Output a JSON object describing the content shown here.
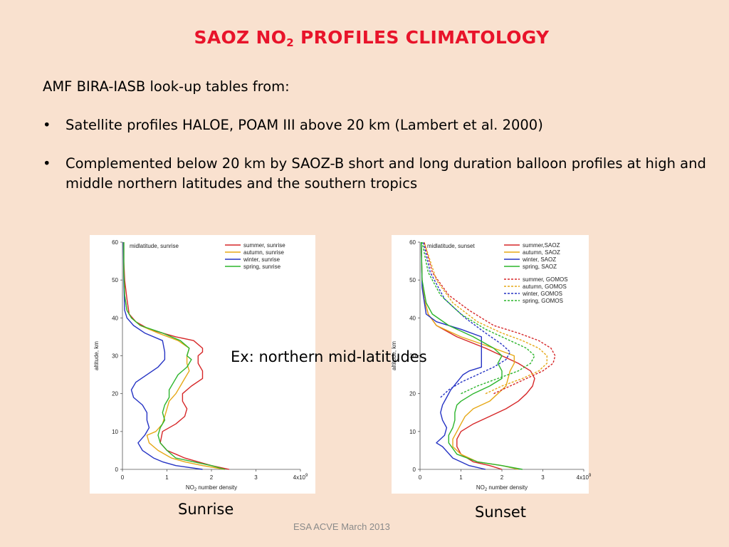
{
  "slide": {
    "title_main": "SAOZ NO",
    "title_sub": "2",
    "title_rest": " PROFILES CLIMATOLOGY",
    "intro": "AMF BIRA-IASB look-up tables from:",
    "bullet_symbol": "•",
    "bullets": [
      "Satellite profiles HALOE, POAM III  above 20 km (Lambert et al. 2000)",
      "Complemented below 20 km by SAOZ-B short and long duration balloon profiles at high and middle northern latitudes and the southern tropics"
    ],
    "example_label": "Ex: northern mid-latitudes",
    "caption_left": "Sunrise",
    "caption_right": "Sunset",
    "footer": "ESA ACVE March 2013",
    "title_color": "#e8132a",
    "background_color": "#f9e1cf"
  },
  "chart_data": [
    {
      "type": "line",
      "title": "midlatitude, sunrise",
      "xlabel_main": "NO",
      "xlabel_sub": "2",
      "xlabel_rest": " number density",
      "ylabel": "altitude, km",
      "xlim": [
        0,
        4
      ],
      "ylim": [
        0,
        60
      ],
      "xticks": [
        "0",
        "1",
        "2",
        "3",
        "4x10"
      ],
      "xtick_exponent": "9",
      "yticks": [
        "0",
        "10",
        "20",
        "30",
        "40",
        "50",
        "60"
      ],
      "legend_position": "top-right",
      "series": [
        {
          "name": "summer, sunrise",
          "color": "#d62728",
          "dashed": false,
          "x": [
            2.4,
            2.0,
            1.7,
            1.4,
            1.2,
            1.0,
            0.85,
            0.9,
            1.2,
            1.4,
            1.45,
            1.35,
            1.35,
            1.55,
            1.8,
            1.8,
            1.7,
            1.7,
            1.8,
            1.8,
            1.6,
            1.2,
            0.6,
            0.3,
            0.15,
            0.1,
            0.05,
            0.03,
            0.03
          ],
          "y": [
            0,
            1,
            2,
            3,
            4,
            5,
            7,
            10,
            12,
            14,
            16,
            18,
            20,
            22,
            24,
            26,
            28,
            30,
            31,
            32,
            34,
            35,
            37,
            39,
            41,
            45,
            50,
            55,
            60
          ]
        },
        {
          "name": "autumn, sunrise",
          "color": "#e6a817",
          "dashed": false,
          "x": [
            2.3,
            1.8,
            1.4,
            1.1,
            0.8,
            0.6,
            0.55,
            0.75,
            0.9,
            0.95,
            1.0,
            1.05,
            1.2,
            1.3,
            1.4,
            1.5,
            1.45,
            1.45,
            1.5,
            1.25,
            0.8,
            0.4,
            0.2,
            0.1,
            0.05,
            0.03,
            0.03
          ],
          "y": [
            0,
            1,
            2,
            3,
            5,
            7,
            9,
            10,
            12,
            14,
            16,
            18,
            20,
            22,
            24,
            26,
            28,
            30,
            32,
            34,
            36,
            38,
            40,
            42,
            46,
            52,
            60
          ]
        },
        {
          "name": "winter, sunrise",
          "color": "#2533c4",
          "dashed": false,
          "x": [
            1.8,
            1.2,
            0.9,
            0.7,
            0.45,
            0.35,
            0.5,
            0.6,
            0.55,
            0.55,
            0.45,
            0.25,
            0.2,
            0.3,
            0.55,
            0.8,
            0.95,
            0.95,
            0.9,
            0.5,
            0.25,
            0.1,
            0.05,
            0.03,
            0.02
          ],
          "y": [
            0,
            1,
            2,
            3,
            5,
            7,
            9,
            11,
            13,
            15,
            17,
            19,
            21,
            23,
            25,
            27,
            29,
            31,
            34,
            36,
            38,
            40,
            42,
            50,
            60
          ]
        },
        {
          "name": "spring, sunrise",
          "color": "#2cb52c",
          "dashed": false,
          "x": [
            2.3,
            2.0,
            1.6,
            1.2,
            1.0,
            0.85,
            0.8,
            0.85,
            0.95,
            0.9,
            0.95,
            1.05,
            1.05,
            1.15,
            1.25,
            1.45,
            1.55,
            1.45,
            1.5,
            1.3,
            0.9,
            0.4,
            0.2,
            0.1,
            0.05,
            0.03,
            0.03
          ],
          "y": [
            0,
            1,
            2,
            3,
            5,
            7,
            9,
            11,
            13,
            15,
            17,
            19,
            21,
            23,
            25,
            27,
            29,
            30,
            32,
            34,
            36,
            38,
            40,
            42,
            46,
            52,
            60
          ]
        }
      ]
    },
    {
      "type": "line",
      "title": "midlatitude, sunset",
      "xlabel_main": "NO",
      "xlabel_sub": "2",
      "xlabel_rest": " number density",
      "ylabel": "altitude, km",
      "xlim": [
        0,
        4
      ],
      "ylim": [
        0,
        60
      ],
      "xticks": [
        "0",
        "1",
        "2",
        "3",
        "4x10"
      ],
      "xtick_exponent": "9",
      "yticks": [
        "0",
        "10",
        "20",
        "30",
        "40",
        "50",
        "60"
      ],
      "legend_position": "top-right",
      "series": [
        {
          "name": "summer,SAOZ",
          "color": "#d62728",
          "dashed": false,
          "x": [
            2.0,
            1.7,
            1.3,
            1.0,
            0.9,
            0.9,
            1.0,
            1.3,
            1.7,
            2.1,
            2.4,
            2.6,
            2.75,
            2.8,
            2.7,
            2.4,
            1.6,
            0.9,
            0.4,
            0.2,
            0.1,
            0.05,
            0.03
          ],
          "y": [
            0,
            1,
            2,
            4,
            6,
            8,
            10,
            12,
            14,
            16,
            18,
            20,
            22,
            24,
            26,
            28,
            32,
            35,
            38,
            41,
            45,
            50,
            60
          ]
        },
        {
          "name": "autumn, SAOZ",
          "color": "#e6a817",
          "dashed": false,
          "x": [
            2.4,
            2.0,
            1.4,
            1.0,
            0.8,
            0.8,
            0.9,
            1.0,
            1.1,
            1.3,
            1.7,
            1.9,
            2.1,
            2.15,
            2.2,
            2.3,
            2.3,
            1.8,
            1.0,
            0.4,
            0.2,
            0.1,
            0.05,
            0.03
          ],
          "y": [
            0,
            1,
            2,
            4,
            6,
            8,
            10,
            12,
            14,
            16,
            18,
            20,
            22,
            24,
            26,
            28,
            30,
            32,
            35,
            38,
            41,
            45,
            50,
            60
          ]
        },
        {
          "name": "winter, SAOZ",
          "color": "#2533c4",
          "dashed": false,
          "x": [
            1.6,
            1.2,
            0.8,
            0.55,
            0.4,
            0.6,
            0.65,
            0.55,
            0.5,
            0.55,
            0.65,
            0.75,
            0.9,
            1.05,
            1.2,
            1.5,
            1.5,
            1.5,
            1.5,
            1.0,
            0.4,
            0.15,
            0.05,
            0.03
          ],
          "y": [
            0,
            1,
            3,
            6,
            7,
            9,
            11,
            13,
            15,
            17,
            19,
            21,
            23,
            25,
            26,
            27,
            30,
            33,
            35,
            37,
            39,
            41,
            48,
            60
          ]
        },
        {
          "name": "spring, SAOZ",
          "color": "#2cb52c",
          "dashed": false,
          "x": [
            2.5,
            2.0,
            1.4,
            0.9,
            0.7,
            0.7,
            0.8,
            0.85,
            0.85,
            0.9,
            1.0,
            1.3,
            1.7,
            2.0,
            2.0,
            1.9,
            2.0,
            1.8,
            1.3,
            0.7,
            0.3,
            0.15,
            0.05,
            0.03
          ],
          "y": [
            0,
            1,
            2,
            4,
            7,
            9,
            11,
            13,
            15,
            17,
            18,
            20,
            22,
            24,
            26,
            28,
            30,
            32,
            35,
            38,
            41,
            44,
            50,
            60
          ]
        },
        {
          "name": "summer, GOMOS",
          "color": "#d62728",
          "dashed": true,
          "x": [
            1.8,
            2.2,
            2.6,
            3.0,
            3.25,
            3.3,
            3.2,
            2.9,
            2.4,
            1.8,
            1.2,
            0.7,
            0.3,
            0.1
          ],
          "y": [
            20,
            22,
            24,
            26,
            28,
            30,
            32,
            34,
            36,
            38,
            42,
            46,
            52,
            60
          ]
        },
        {
          "name": "autumn, GOMOS",
          "color": "#e6a817",
          "dashed": true,
          "x": [
            1.6,
            2.0,
            2.5,
            2.9,
            3.1,
            3.1,
            2.9,
            2.5,
            2.0,
            1.4,
            0.8,
            0.4,
            0.1
          ],
          "y": [
            20,
            22,
            24,
            26,
            28,
            30,
            32,
            34,
            36,
            39,
            44,
            50,
            60
          ]
        },
        {
          "name": "winter, GOMOS",
          "color": "#2533c4",
          "dashed": true,
          "x": [
            0.5,
            0.7,
            1.0,
            1.4,
            1.8,
            2.1,
            2.2,
            2.0,
            1.6,
            1.1,
            0.6,
            0.25,
            0.08
          ],
          "y": [
            19,
            21,
            23,
            25,
            27,
            29,
            31,
            33,
            36,
            40,
            45,
            52,
            60
          ]
        },
        {
          "name": "spring, GOMOS",
          "color": "#2cb52c",
          "dashed": true,
          "x": [
            1.0,
            1.4,
            1.9,
            2.4,
            2.7,
            2.8,
            2.6,
            2.2,
            1.6,
            1.0,
            0.5,
            0.2,
            0.05
          ],
          "y": [
            20,
            22,
            24,
            26,
            28,
            30,
            32,
            34,
            37,
            41,
            46,
            52,
            60
          ]
        }
      ]
    }
  ]
}
